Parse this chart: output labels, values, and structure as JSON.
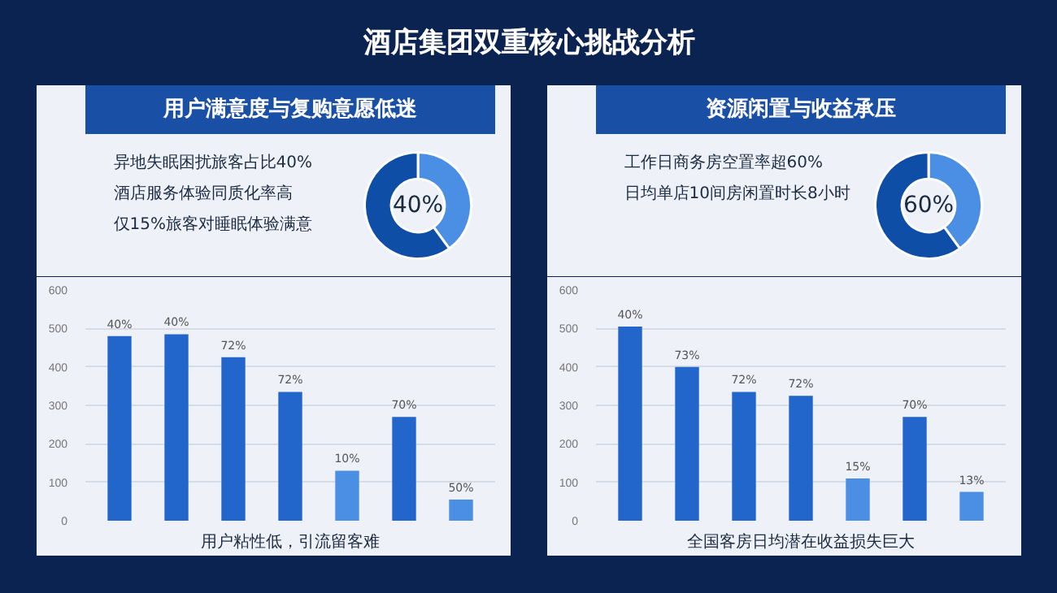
{
  "chart_data": [
    {
      "type": "other",
      "title": "酒店集团双重核心挑战分析"
    },
    {
      "type": "donut",
      "title": "用户满意度与复购意愿低迷",
      "categories": [
        null,
        null
      ],
      "values": [
        40,
        60
      ],
      "colors": [
        "#4a8fe3",
        "#0f4ea6"
      ],
      "annotations": [
        "异地失眠困扰旅客占比40%",
        "酒店服务体验同质化率高",
        "仅15%旅客对睡眠体验满意",
        "40%"
      ]
    },
    {
      "type": "bar",
      "categories": [
        null,
        null,
        null,
        null,
        null,
        null,
        null
      ],
      "values": [
        480,
        485,
        425,
        335,
        130,
        270,
        55
      ],
      "colors": [
        "#2266cc",
        "#2266cc",
        "#2266cc",
        "#2266cc",
        "#4a8fe3",
        "#2266cc",
        "#4a8fe3"
      ],
      "annotations": [
        {
          "text": "40%",
          "y": 480
        },
        {
          "text": "40%",
          "y": 485
        },
        {
          "text": "72%",
          "y": 425
        },
        {
          "text": "72%",
          "y": 335
        },
        {
          "text": "10%",
          "y": 130
        },
        {
          "text": "70%",
          "y": 270
        },
        {
          "text": "50%",
          "y": 55
        }
      ],
      "ylim": [
        0,
        600
      ],
      "yticks": [
        0,
        100,
        200,
        300,
        400,
        500,
        600
      ],
      "grid": "y",
      "tick_labels": "y",
      "xlabel": "用户粘性低，引流留客难"
    },
    {
      "type": "donut",
      "title": "资源闲置与收益承压",
      "categories": [
        null,
        null
      ],
      "values": [
        40,
        60
      ],
      "colors": [
        "#4a8fe3",
        "#0f4ea6"
      ],
      "annotations": [
        "工作日商务房空置率超60%",
        "日均单店10间房闲置时长8小时",
        "60%"
      ]
    },
    {
      "type": "bar",
      "categories": [
        null,
        null,
        null,
        null,
        null,
        null,
        null
      ],
      "values": [
        505,
        400,
        335,
        325,
        110,
        270,
        75
      ],
      "colors": [
        "#2266cc",
        "#2266cc",
        "#2266cc",
        "#2266cc",
        "#4a8fe3",
        "#2266cc",
        "#4a8fe3"
      ],
      "annotations": [
        {
          "text": "40%",
          "y": 505
        },
        {
          "text": "73%",
          "y": 400
        },
        {
          "text": "72%",
          "y": 335
        },
        {
          "text": "72%",
          "y": 325
        },
        {
          "text": "15%",
          "y": 110
        },
        {
          "text": "70%",
          "y": 270
        },
        {
          "text": "13%",
          "y": 75
        }
      ],
      "ylim": [
        0,
        600
      ],
      "yticks": [
        0,
        100,
        200,
        300,
        400,
        500,
        600
      ],
      "grid": "y",
      "tick_labels": "y",
      "xlabel": "全国客房日均潜在收益损失巨大"
    }
  ]
}
